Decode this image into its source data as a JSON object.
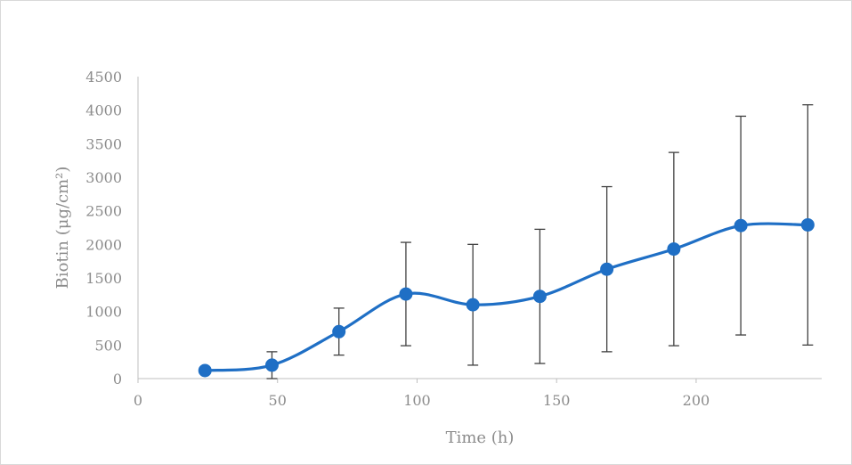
{
  "chart_data": {
    "type": "line",
    "title": "",
    "xlabel": "Time (h)",
    "ylabel": "Biotin (μg/cm²)",
    "xlim": [
      0,
      245
    ],
    "ylim": [
      0,
      4500
    ],
    "x_ticks": [
      0,
      50,
      100,
      150,
      200
    ],
    "y_ticks": [
      0,
      500,
      1000,
      1500,
      2000,
      2500,
      3000,
      3500,
      4000,
      4500
    ],
    "grid": false,
    "legend": "none",
    "smooth": true,
    "series": [
      {
        "color": "#1f6fc5",
        "x": [
          24,
          48,
          72,
          96,
          120,
          144,
          168,
          192,
          216,
          240
        ],
        "y": [
          120,
          200,
          700,
          1260,
          1100,
          1225,
          1630,
          1930,
          2280,
          2290
        ],
        "error": [
          0,
          200,
          350,
          770,
          900,
          1000,
          1230,
          1440,
          1630,
          1790
        ]
      }
    ]
  }
}
